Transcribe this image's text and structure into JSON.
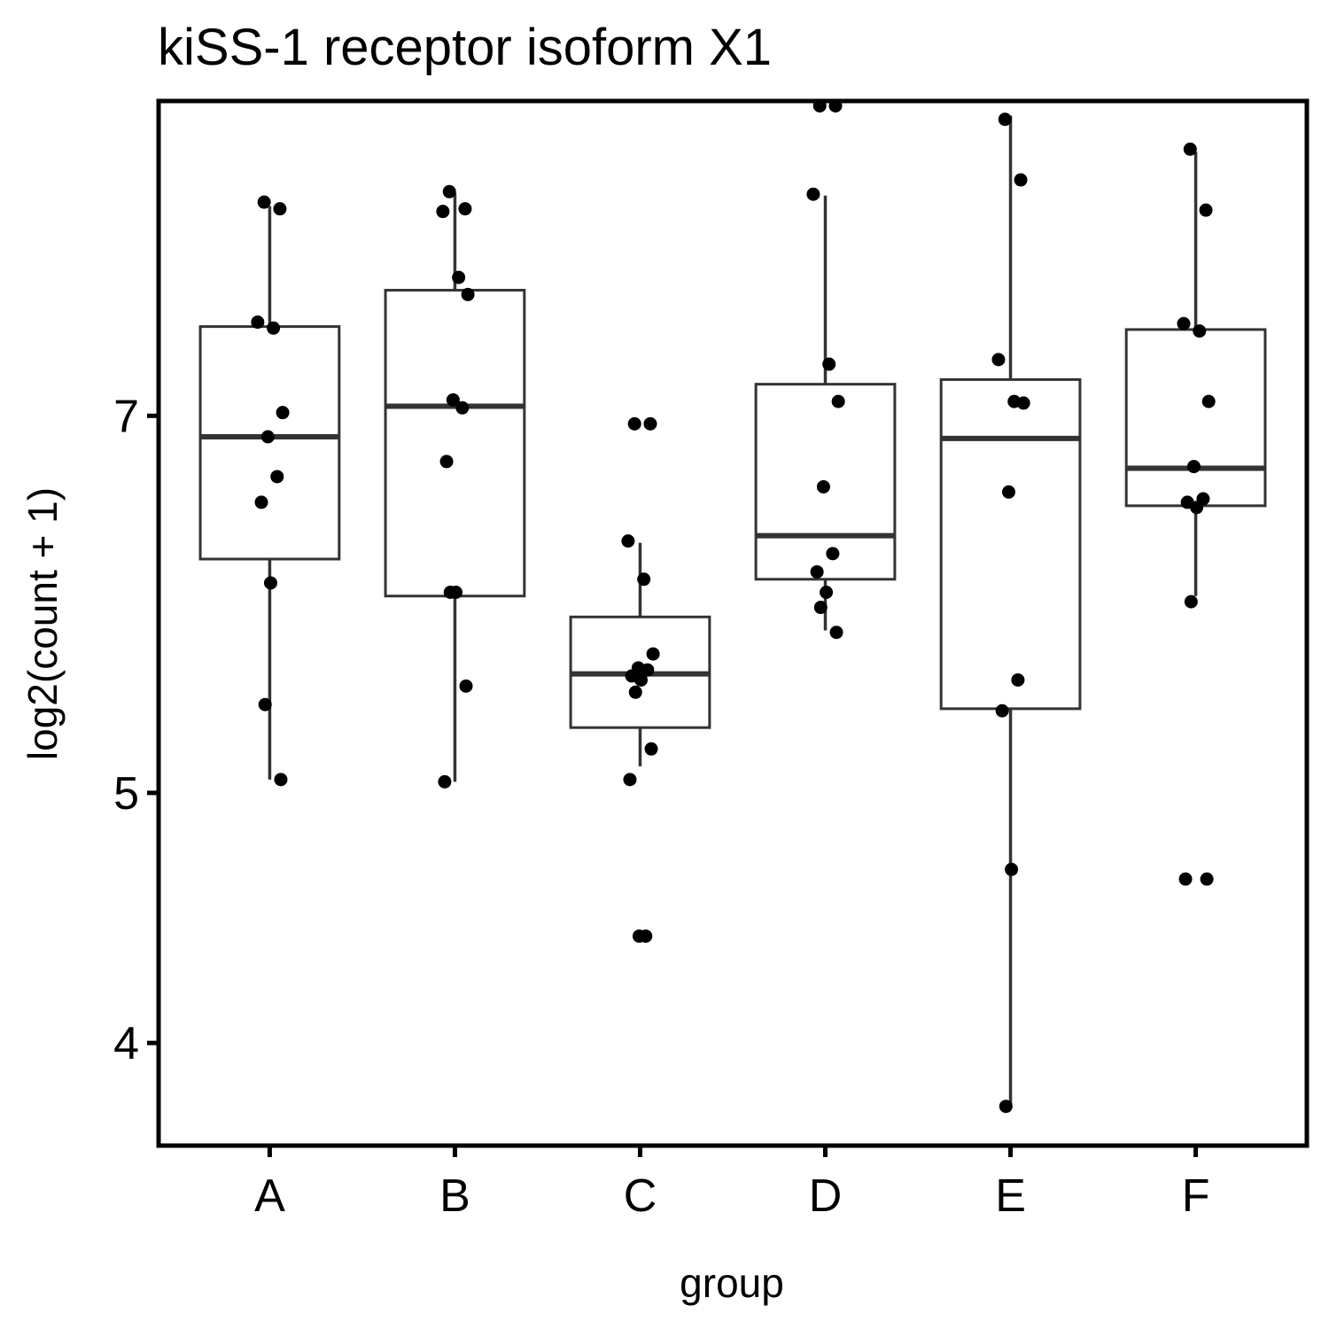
{
  "chart_data": {
    "type": "boxplot",
    "title": "kiSS-1 receptor isoform X1",
    "xlabel": "group",
    "ylabel": "log2(count + 1)",
    "y_scale": "log",
    "ylim": [
      3.65,
      9.27
    ],
    "y_ticks": [
      4,
      5,
      7
    ],
    "grid": false,
    "legend": "none",
    "categories": [
      "A",
      "B",
      "C",
      "D",
      "E",
      "F"
    ],
    "boxes": [
      {
        "group": "A",
        "whisker_low": 5.06,
        "q1": 6.16,
        "median": 6.87,
        "q3": 7.58,
        "whisker_high": 8.44
      },
      {
        "group": "B",
        "whisker_low": 5.05,
        "q1": 5.96,
        "median": 7.06,
        "q3": 7.83,
        "whisker_high": 8.54
      },
      {
        "group": "C",
        "whisker_low": 5.12,
        "q1": 5.3,
        "median": 5.56,
        "q3": 5.85,
        "whisker_high": 6.25
      },
      {
        "group": "D",
        "whisker_low": 5.78,
        "q1": 6.05,
        "median": 6.29,
        "q3": 7.2,
        "whisker_high": 8.52
      },
      {
        "group": "E",
        "whisker_low": 3.78,
        "q1": 5.39,
        "median": 6.86,
        "q3": 7.23,
        "whisker_high": 9.15
      },
      {
        "group": "F",
        "whisker_low": 5.96,
        "q1": 6.46,
        "median": 6.68,
        "q3": 7.56,
        "whisker_high": 8.86
      }
    ],
    "points": [
      {
        "group": "A",
        "values": [
          8.47,
          8.42,
          7.61,
          7.57,
          7.02,
          6.87,
          6.63,
          6.48,
          6.03,
          5.41,
          5.06
        ]
      },
      {
        "group": "B",
        "values": [
          8.55,
          8.42,
          8.4,
          7.92,
          7.8,
          7.1,
          7.05,
          6.72,
          5.98,
          5.98,
          5.5,
          5.05
        ]
      },
      {
        "group": "C",
        "values": [
          6.95,
          6.95,
          6.26,
          6.05,
          5.66,
          5.59,
          5.58,
          5.55,
          5.53,
          5.47,
          5.2,
          5.06,
          4.4,
          4.4
        ]
      },
      {
        "group": "D",
        "values": [
          9.23,
          9.23,
          8.53,
          7.33,
          7.09,
          6.57,
          6.19,
          6.09,
          5.98,
          5.9,
          5.77
        ]
      },
      {
        "group": "E",
        "values": [
          9.12,
          8.64,
          7.36,
          7.09,
          7.08,
          6.54,
          5.53,
          5.38,
          4.67,
          3.78
        ]
      },
      {
        "group": "F",
        "values": [
          8.88,
          8.41,
          7.6,
          7.55,
          7.09,
          6.69,
          6.5,
          6.48,
          6.45,
          5.93,
          4.63,
          4.63
        ]
      }
    ],
    "colors": {
      "box": "#333333",
      "point": "#000000",
      "frame": "#000000"
    }
  }
}
